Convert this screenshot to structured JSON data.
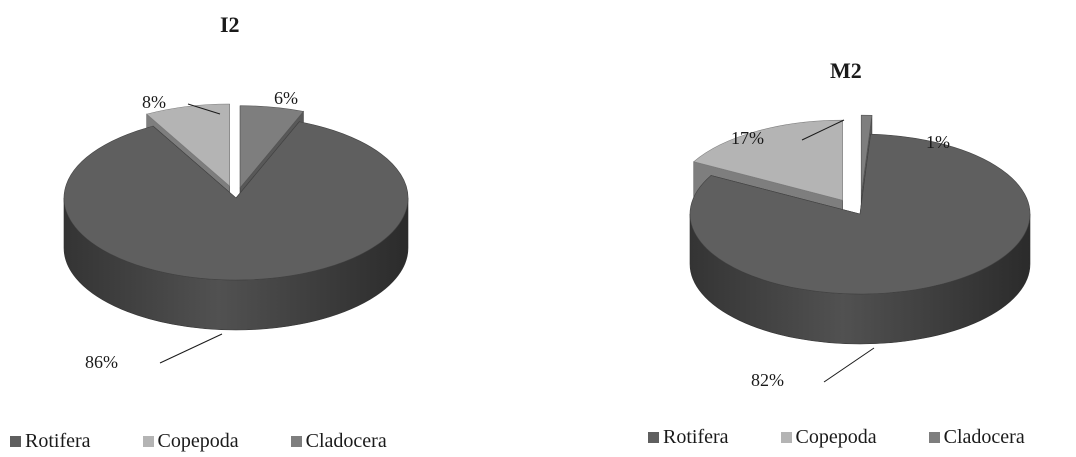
{
  "chart_data": [
    {
      "type": "pie",
      "title": "I2",
      "categories": [
        "Rotifera",
        "Copepoda",
        "Cladocera"
      ],
      "values": [
        86,
        8,
        6
      ],
      "value_labels": [
        "86%",
        "8%",
        "6%"
      ],
      "colors": [
        "#5f5f5f",
        "#b4b4b4",
        "#7e7e7e"
      ],
      "exploded": true,
      "three_d": true,
      "legend": "bottom"
    },
    {
      "type": "pie",
      "title": "M2",
      "categories": [
        "Rotifera",
        "Copepoda",
        "Cladocera"
      ],
      "values": [
        82,
        17,
        1
      ],
      "value_labels": [
        "82%",
        "17%",
        "1%"
      ],
      "colors": [
        "#5f5f5f",
        "#b4b4b4",
        "#7e7e7e"
      ],
      "exploded": true,
      "three_d": true,
      "legend": "bottom"
    }
  ]
}
